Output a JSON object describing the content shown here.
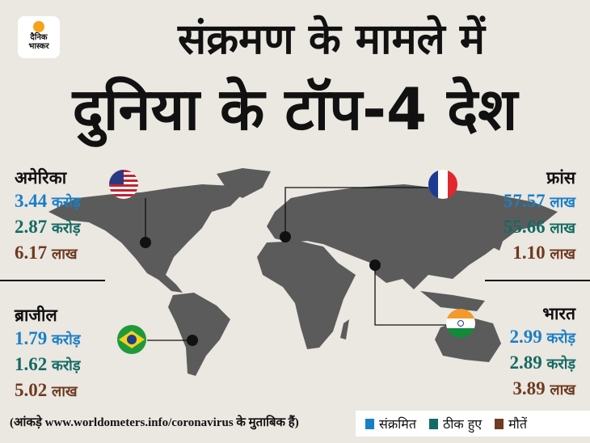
{
  "logo": {
    "line1": "दैनिक",
    "line2": "भास्कर"
  },
  "title": {
    "line1": "संक्रमण के मामले में",
    "line2": "दुनिया के टॉप-4 देश"
  },
  "colors": {
    "infected": "#1a7fc6",
    "recovered": "#136b63",
    "deaths": "#6e3a20",
    "map": "#5b5b5b"
  },
  "countries": [
    {
      "name": "अमेरिका",
      "flag": "usa-flag",
      "infected": "3.44",
      "infected_unit": "करोड़",
      "recovered": "2.87",
      "recovered_unit": "करोड़",
      "deaths": "6.17",
      "deaths_unit": "लाख"
    },
    {
      "name": "फ्रांस",
      "flag": "france-flag",
      "infected": "57.57",
      "infected_unit": "लाख",
      "recovered": "55.66",
      "recovered_unit": "लाख",
      "deaths": "1.10",
      "deaths_unit": "लाख"
    },
    {
      "name": "ब्राजील",
      "flag": "brazil-flag",
      "infected": "1.79",
      "infected_unit": "करोड़",
      "recovered": "1.62",
      "recovered_unit": "करोड़",
      "deaths": "5.02",
      "deaths_unit": "लाख"
    },
    {
      "name": "भारत",
      "flag": "india-flag",
      "infected": "2.99",
      "infected_unit": "करोड़",
      "recovered": "2.89",
      "recovered_unit": "करोड़",
      "deaths": "3.89",
      "deaths_unit": "लाख"
    }
  ],
  "footer": "(आंकड़े www.worldometers.info/coronavirus के मुताबिक हैं)",
  "legend": [
    "संक्रमित",
    "ठीक हुए",
    "मौतें"
  ]
}
